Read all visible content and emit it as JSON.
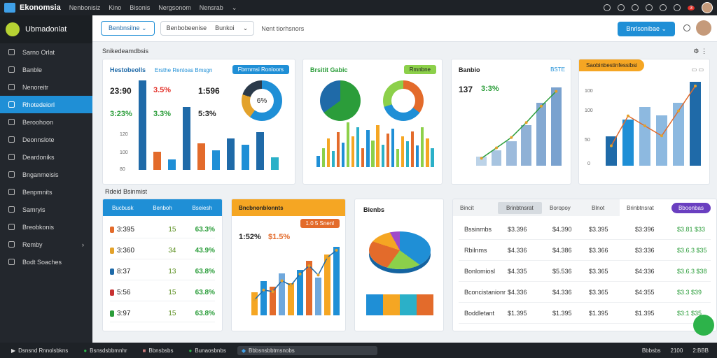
{
  "topbar": {
    "app_title": "Ekonomsia",
    "menus": [
      "Nenbonisiz",
      "Kino",
      "Bisonis",
      "Nergsonom",
      "Nensrab"
    ],
    "notification_count": "3"
  },
  "sidebar": {
    "title": "Ubmadonlat",
    "items": [
      {
        "label": "Sarno Orlat"
      },
      {
        "label": "Banble"
      },
      {
        "label": "Nenoreitr"
      },
      {
        "label": "Rhotedeiorl"
      },
      {
        "label": "Beroohoon"
      },
      {
        "label": "Deonnslote"
      },
      {
        "label": "Deardoniks"
      },
      {
        "label": "Bnganmeisis"
      },
      {
        "label": "Benpmnits"
      },
      {
        "label": "Samryis"
      },
      {
        "label": "Breobkonis"
      },
      {
        "label": "Remby"
      },
      {
        "label": "Bodt Soaches"
      }
    ]
  },
  "toolbar": {
    "primary_left": "Benbnsilne",
    "select_a": "Benbobeenise",
    "select_b": "Bunkoi",
    "breadcrumb": "Nent tiorhsnors",
    "action": "Bnrlsonibae"
  },
  "section1": {
    "title": "Snikedeamdbsis"
  },
  "section2": {
    "title": "Rdeid Bsinmist"
  },
  "card1": {
    "title": "Hestobeolls",
    "subtitle": "Ersthe Rentoas Bmsgn",
    "chip": "Fbrmmsi Ronloors",
    "numbers": [
      "23:90",
      "3.5%",
      "1:596",
      "3:23%",
      "3.3%",
      "5:3%"
    ],
    "yticks": [
      "120",
      "100",
      "80"
    ],
    "bar_values": [
      100,
      20,
      12,
      70,
      30,
      22,
      35,
      28,
      42,
      14
    ],
    "donut_label": "6%"
  },
  "card2": {
    "title": "Brsitit Gabic",
    "chip": "Rmnbne",
    "bar_values": [
      18,
      30,
      45,
      25,
      55,
      38,
      70,
      48,
      62,
      30,
      58,
      42,
      66,
      35,
      52,
      60,
      28,
      48,
      40,
      56,
      34,
      62,
      45,
      30
    ]
  },
  "card3": {
    "title": "Banbio",
    "tag": "BSTE",
    "numbers": [
      "137",
      "3:3%"
    ],
    "bar_values": [
      8,
      14,
      22,
      36,
      56,
      70
    ],
    "line_values": [
      10,
      24,
      38,
      58,
      80,
      100
    ]
  },
  "card4": {
    "title": "Saobinbestinfessibsi",
    "yticks": [
      "100",
      "100",
      "50",
      "0"
    ],
    "bar_values": [
      35,
      55,
      70,
      60,
      75,
      100
    ],
    "line_values": [
      20,
      50,
      40,
      30,
      55,
      80
    ]
  },
  "table1": {
    "columns": [
      "Bucbusk",
      "Benboh",
      "Bseiesh"
    ],
    "rows": [
      {
        "a": "3:395",
        "b": "15",
        "c": "63.3%",
        "color": "#e36b2b"
      },
      {
        "a": "3:360",
        "b": "34",
        "c": "43.9%",
        "color": "#e3a22b"
      },
      {
        "a": "8:37",
        "b": "13",
        "c": "63.8%",
        "color": "#1f6aa8"
      },
      {
        "a": "5:56",
        "b": "15",
        "c": "63.8%",
        "color": "#c83232"
      },
      {
        "a": "3:97",
        "b": "15",
        "c": "63.8%",
        "color": "#2b9d3a"
      }
    ]
  },
  "card5": {
    "title": "Bncbnonblonnts",
    "tag": "1.0 5 Snenl",
    "numbers": [
      "1:52%",
      "$1.5%"
    ],
    "bar_values": [
      30,
      45,
      38,
      55,
      42,
      60,
      72,
      50,
      80,
      90
    ]
  },
  "card6": {
    "title": "Bienbs"
  },
  "table2": {
    "columns": [
      "Bincit",
      "Brinbtnsrat",
      "Boropoy",
      "Blnot"
    ],
    "action": "Bboonbas",
    "rows": [
      {
        "name": "Bssinmbs",
        "v1": "$3.396",
        "v2": "$4.390",
        "v3": "$3.395",
        "v4": "$3:396",
        "v5": "$3.81 $33"
      },
      {
        "name": "Rbilnms",
        "v1": "$4.336",
        "v2": "$4.386",
        "v3": "$3.366",
        "v4": "$3:336",
        "v5": "$3.6.3 $35"
      },
      {
        "name": "Bonlomiosl",
        "v1": "$4.335",
        "v2": "$5.536",
        "v3": "$3.365",
        "v4": "$4:336",
        "v5": "$3.6.3 $38"
      },
      {
        "name": "Bconcistanionr",
        "v1": "$4.336",
        "v2": "$4.336",
        "v3": "$3.365",
        "v4": "$4:355",
        "v5": "$3.3 $39"
      },
      {
        "name": "Boddletant",
        "v1": "$1.395",
        "v2": "$1.395",
        "v3": "$1.395",
        "v4": "$1.395",
        "v5": "$3:1 $35"
      }
    ]
  },
  "statusbar": {
    "items": [
      "Dsnsnd Rnnolsbkns",
      "Bsnsdsbbmnhr",
      "Bbnsbsbs",
      "Bunaosbnbs",
      "Bbbsnsbbtmsnobs"
    ],
    "right": [
      "Bbbsbs",
      "2100",
      "2:BBB"
    ]
  }
}
